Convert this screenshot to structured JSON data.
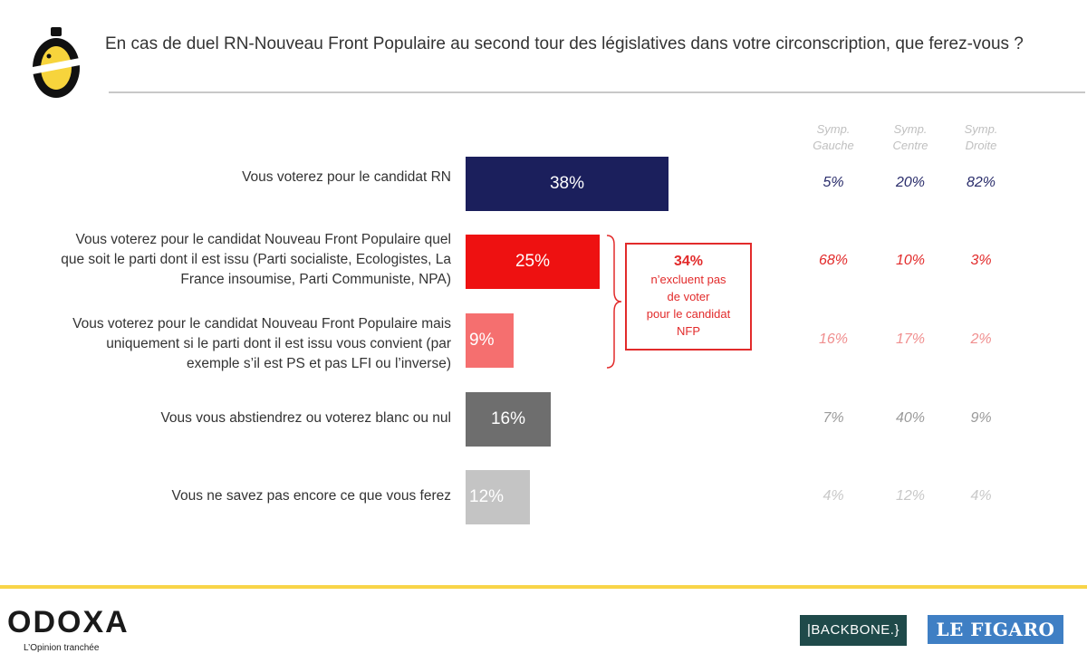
{
  "title": "En cas de duel RN-Nouveau Front Populaire au second tour des législatives dans votre circonscription, que ferez-vous ?",
  "columns": [
    {
      "line1": "Symp.",
      "line2": "Gauche"
    },
    {
      "line1": "Symp.",
      "line2": "Centre"
    },
    {
      "line1": "Symp.",
      "line2": "Droite"
    }
  ],
  "chart_data": {
    "type": "bar",
    "orientation": "horizontal",
    "title": "En cas de duel RN-Nouveau Front Populaire au second tour des législatives dans votre circonscription, que ferez-vous ?",
    "categories": [
      "Vous voterez pour le candidat RN",
      "Vous voterez pour le candidat Nouveau Front Populaire quel que soit le parti dont il est issu (Parti socialiste, Ecologistes, La France insoumise, Parti Communiste, NPA)",
      "Vous voterez pour le candidat Nouveau Front Populaire mais uniquement si le parti dont il est issu vous convient (par exemple s’il est PS et pas LFI ou l’inverse)",
      "Vous vous abstiendrez ou voterez blanc ou nul",
      "Vous ne savez pas encore ce que vous ferez"
    ],
    "values": [
      38,
      25,
      9,
      16,
      12
    ],
    "value_labels": [
      "38%",
      "25%",
      "9%",
      "16%",
      "12%"
    ],
    "bar_colors": [
      "#1b1f5c",
      "#ee1111",
      "#f56f6f",
      "#6e6e6e",
      "#c4c4c4"
    ],
    "value_label_colors": [
      "#2a2d6b",
      "#e22b2b",
      "#f08f8f",
      "#9a9a9a",
      "#c8c8c8"
    ],
    "series_table": [
      {
        "name": "Symp. Gauche",
        "values": [
          "5%",
          "68%",
          "16%",
          "7%",
          "4%"
        ]
      },
      {
        "name": "Symp. Centre",
        "values": [
          "20%",
          "10%",
          "17%",
          "40%",
          "12%"
        ]
      },
      {
        "name": "Symp. Droite",
        "values": [
          "82%",
          "3%",
          "2%",
          "9%",
          "4%"
        ]
      }
    ],
    "xlim": [
      0,
      100
    ]
  },
  "rows_text": [
    {
      "lines": [
        "Vous voterez pour le candidat RN"
      ]
    },
    {
      "lines": [
        "Vous voterez pour le candidat Nouveau Front Populaire quel",
        "que soit le parti dont il est issu (Parti socialiste, Ecologistes, La",
        "France insoumise, Parti Communiste, NPA)"
      ]
    },
    {
      "lines": [
        "Vous voterez pour le candidat Nouveau Front Populaire mais",
        "uniquement si le parti dont il est issu vous convient (par",
        "exemple s’il est PS et pas LFI ou l’inverse)"
      ]
    },
    {
      "lines": [
        "Vous vous abstiendrez ou voterez blanc ou nul"
      ]
    },
    {
      "lines": [
        "Vous ne savez pas encore ce que vous ferez"
      ]
    }
  ],
  "callout": {
    "pct": "34%",
    "lines": [
      "n’excluent pas",
      "de voter",
      "pour le candidat",
      "NFP"
    ],
    "color": "#e22b2b"
  },
  "footer": {
    "brand": "ODOXA",
    "tagline": "L’Opinion tranchée",
    "partner1": "|BACKBONE.}",
    "partner2": "LE FIGARO",
    "accent": "#f8d448"
  }
}
